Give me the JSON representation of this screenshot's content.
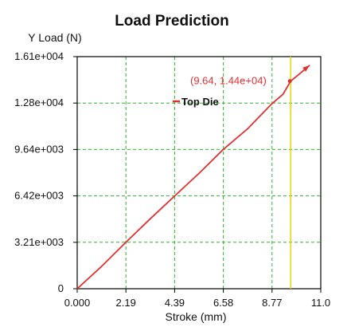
{
  "chart_data": {
    "type": "line",
    "title": "Load Prediction",
    "ylabel": "Y Load (N)",
    "xlabel": "Stroke (mm)",
    "xlim": [
      0,
      11.0
    ],
    "ylim": [
      0,
      16100
    ],
    "x_ticks": [
      "0.000",
      "2.19",
      "4.39",
      "6.58",
      "8.77",
      "11.0"
    ],
    "y_ticks": [
      "0",
      "3.21e+003",
      "6.42e+003",
      "9.64e+003",
      "1.28e+004",
      "1.61e+004"
    ],
    "grid": true,
    "series": [
      {
        "name": "Top Die",
        "color": "#e03030",
        "x": [
          0.0,
          1.1,
          2.19,
          3.3,
          4.39,
          5.5,
          6.58,
          7.7,
          8.77,
          9.3,
          9.64,
          10.0,
          10.5
        ],
        "y": [
          0,
          1550,
          3210,
          4850,
          6420,
          8000,
          9640,
          11100,
          12800,
          13500,
          14400,
          14850,
          15500
        ]
      }
    ],
    "cursor": {
      "x": 9.64,
      "color": "#e8d800"
    },
    "annotation": "(9.64, 1.44e+04)",
    "legend": "Top Die"
  },
  "colors": {
    "grid": "#2bb52b",
    "axis": "#000000",
    "series": "#e03030",
    "cursor": "#e8d800"
  }
}
